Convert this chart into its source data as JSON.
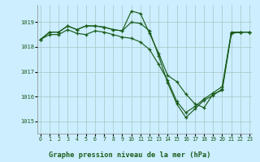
{
  "title": "Graphe pression niveau de la mer (hPa)",
  "bg_color": "#cceeff",
  "plot_bg_color": "#cceeff",
  "grid_color": "#aacccc",
  "line_color": "#1a5c1a",
  "marker_color": "#1a5c1a",
  "ylabel_ticks": [
    1015,
    1016,
    1017,
    1018,
    1019
  ],
  "xticks": [
    0,
    1,
    2,
    3,
    4,
    5,
    6,
    7,
    8,
    9,
    10,
    11,
    12,
    13,
    14,
    15,
    16,
    17,
    18,
    19,
    20,
    21,
    22,
    23
  ],
  "ylim": [
    1014.5,
    1019.7
  ],
  "xlim": [
    -0.3,
    23.3
  ],
  "series1_x": [
    0,
    1,
    2,
    3,
    4,
    5,
    6,
    7,
    8,
    9,
    10,
    11,
    12,
    13,
    14,
    15,
    16,
    17,
    18,
    19,
    20,
    21,
    22,
    23
  ],
  "series1_y": [
    1018.3,
    1018.6,
    1018.6,
    1018.85,
    1018.7,
    1018.85,
    1018.85,
    1018.8,
    1018.7,
    1018.65,
    1019.45,
    1019.35,
    1018.55,
    1017.75,
    1016.85,
    1016.6,
    1016.1,
    1015.7,
    1015.55,
    1016.1,
    1016.25,
    1018.55,
    1018.6,
    1018.6
  ],
  "series2_x": [
    0,
    1,
    2,
    3,
    4,
    5,
    6,
    7,
    8,
    9,
    10,
    11,
    12,
    13,
    14,
    15,
    16,
    17,
    18,
    19,
    20,
    21,
    22,
    23
  ],
  "series2_y": [
    1018.3,
    1018.6,
    1018.6,
    1018.85,
    1018.7,
    1018.85,
    1018.85,
    1018.8,
    1018.7,
    1018.65,
    1019.0,
    1018.95,
    1018.65,
    1017.65,
    1016.55,
    1015.7,
    1015.15,
    1015.5,
    1015.85,
    1016.05,
    1016.3,
    1018.55,
    1018.6,
    1018.6
  ],
  "series3_x": [
    0,
    1,
    2,
    3,
    4,
    5,
    6,
    7,
    8,
    9,
    10,
    11,
    12,
    13,
    14,
    15,
    16,
    17,
    18,
    19,
    20,
    21,
    22,
    23
  ],
  "series3_y": [
    1018.3,
    1018.5,
    1018.5,
    1018.7,
    1018.55,
    1018.5,
    1018.65,
    1018.6,
    1018.5,
    1018.4,
    1018.35,
    1018.2,
    1017.9,
    1017.3,
    1016.65,
    1015.8,
    1015.35,
    1015.6,
    1015.9,
    1016.15,
    1016.4,
    1018.6,
    1018.6,
    1018.6
  ]
}
